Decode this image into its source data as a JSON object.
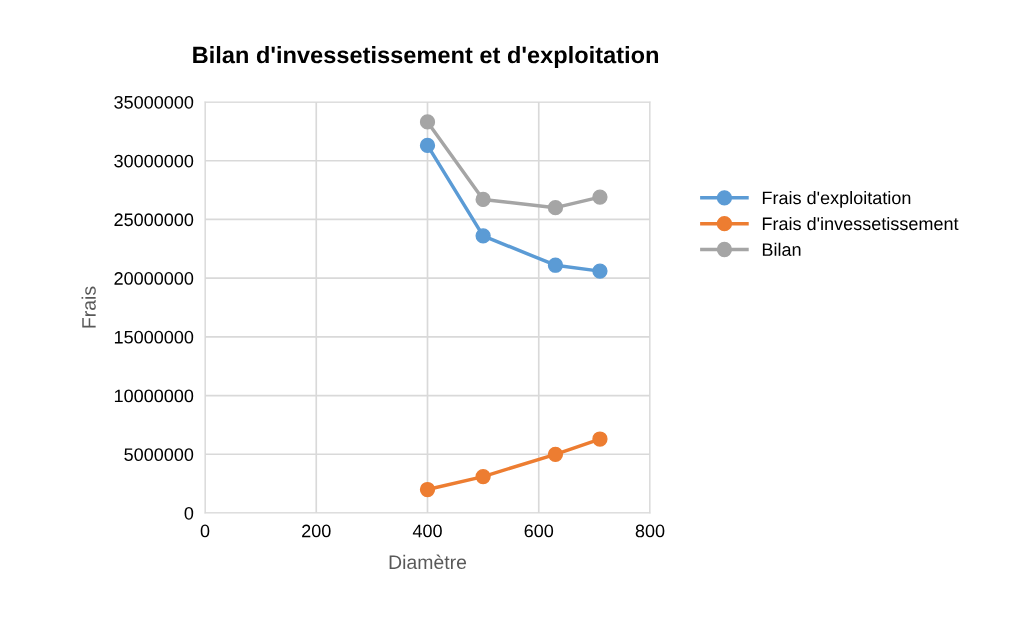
{
  "chart_data": {
    "type": "line",
    "title": "Bilan d'invessetissement et d'exploitation",
    "xlabel": "Diamètre",
    "ylabel": "Frais",
    "x": [
      400,
      500,
      630,
      710
    ],
    "series": [
      {
        "name": "Frais d'exploitation",
        "color": "#5b9bd5",
        "values": [
          31300000,
          23600000,
          21100000,
          20600000
        ]
      },
      {
        "name": "Frais d'invessetissement",
        "color": "#ed7d31",
        "values": [
          2000000,
          3100000,
          5000000,
          6300000
        ]
      },
      {
        "name": "Bilan",
        "color": "#a5a5a5",
        "values": [
          33300000,
          26700000,
          26000000,
          26900000
        ]
      }
    ],
    "xlim": [
      0,
      800
    ],
    "xticks": [
      0,
      200,
      400,
      600,
      800
    ],
    "ylim": [
      0,
      35000000
    ],
    "yticks": [
      0,
      5000000,
      10000000,
      15000000,
      20000000,
      25000000,
      30000000,
      35000000
    ],
    "grid": true,
    "legend": "right",
    "marker": "circle",
    "line_style": "solid"
  }
}
